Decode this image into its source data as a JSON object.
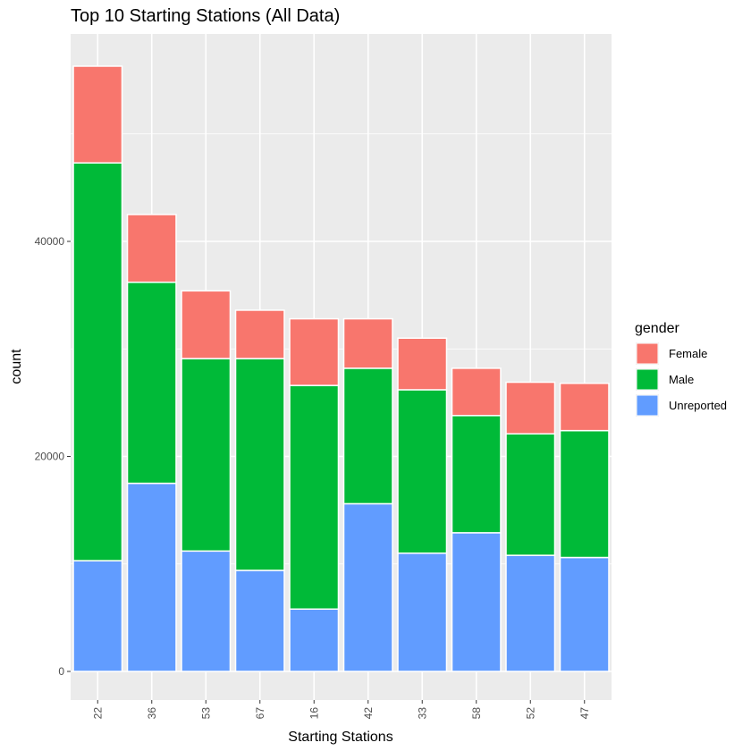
{
  "chart_data": {
    "type": "bar",
    "stacked": true,
    "title": "Top 10 Starting Stations (All Data)",
    "xlabel": "Starting Stations",
    "ylabel": "count",
    "categories": [
      "22",
      "36",
      "53",
      "67",
      "16",
      "42",
      "33",
      "58",
      "52",
      "47"
    ],
    "ylim": [
      0,
      58000
    ],
    "yticks": [
      0,
      20000,
      40000
    ],
    "grid": true,
    "legend": {
      "title": "gender",
      "position": "right"
    },
    "series": [
      {
        "name": "Unreported",
        "color": "#619CFF",
        "values": [
          10300,
          17500,
          11200,
          9400,
          5800,
          15600,
          11000,
          12900,
          10800,
          10600
        ]
      },
      {
        "name": "Male",
        "color": "#00BA38",
        "values": [
          37000,
          18700,
          17900,
          19700,
          20800,
          12600,
          15200,
          10900,
          11300,
          11800
        ]
      },
      {
        "name": "Female",
        "color": "#F8766D",
        "values": [
          9000,
          6300,
          6300,
          4500,
          6200,
          4600,
          4800,
          4400,
          4800,
          4400
        ]
      }
    ],
    "legend_order": [
      "Female",
      "Male",
      "Unreported"
    ]
  }
}
